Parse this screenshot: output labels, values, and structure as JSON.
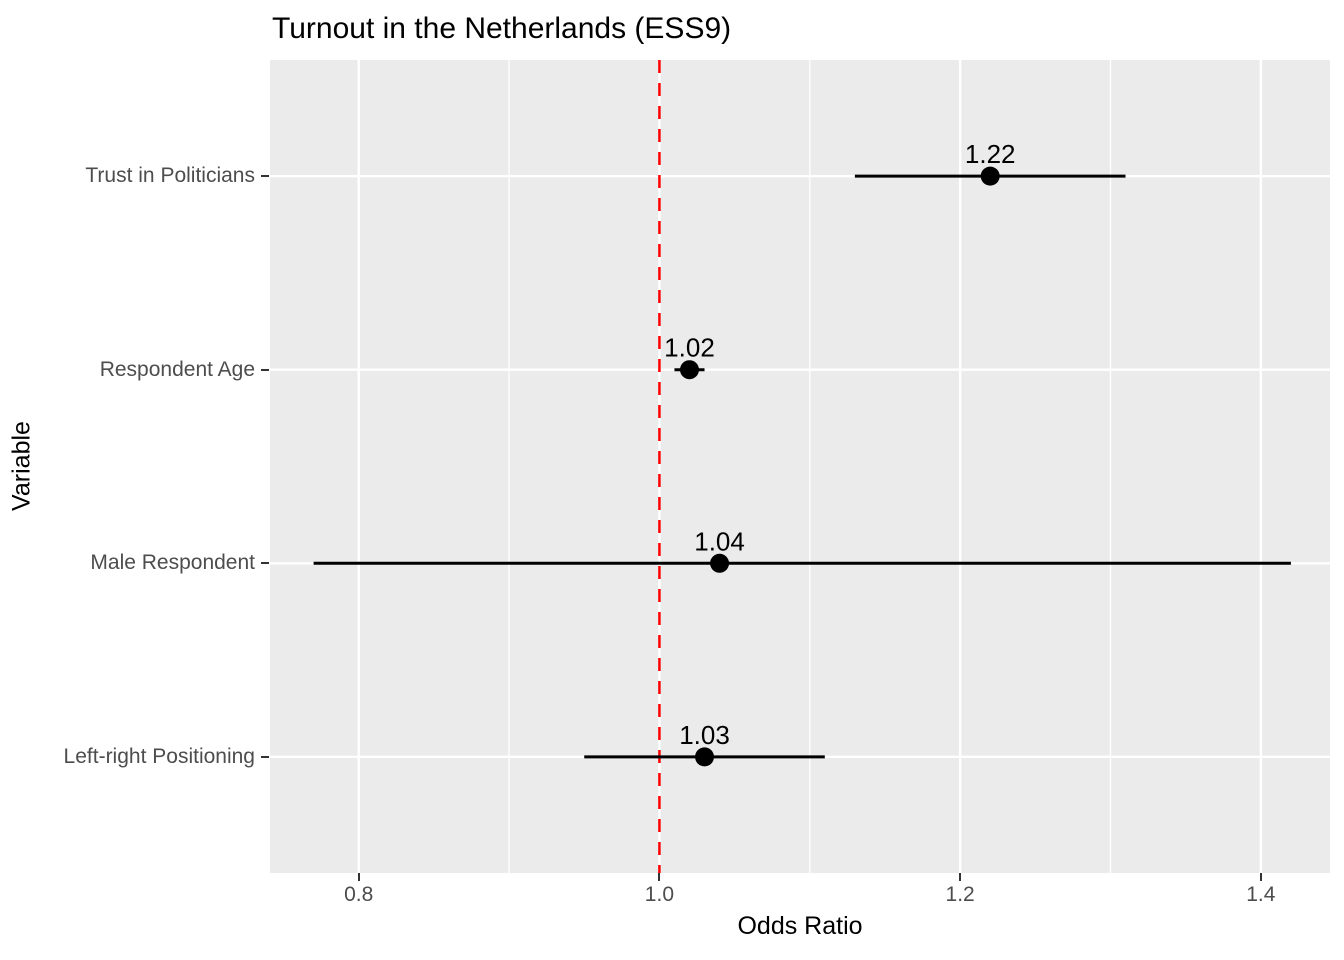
{
  "chart_data": {
    "type": "scatter",
    "subtype": "forest-plot-odds-ratios",
    "title": "Turnout in the Netherlands (ESS9)",
    "xlabel": "Odds Ratio",
    "ylabel": "Variable",
    "xlim": [
      0.741,
      1.446
    ],
    "x_major_ticks": [
      0.8,
      1.0,
      1.2,
      1.4
    ],
    "x_major_tick_labels": [
      "0.8",
      "1.0",
      "1.2",
      "1.4"
    ],
    "x_minor_ticks": [
      0.9,
      1.1,
      1.3
    ],
    "grid": "on",
    "legend_position": "none",
    "reference_line": {
      "x": 1.0,
      "style": "dashed",
      "color": "#ff0000"
    },
    "rows": [
      {
        "label": "Trust in Politicians",
        "odds_ratio": 1.22,
        "ci_low": 1.13,
        "ci_high": 1.31,
        "value_label": "1.22"
      },
      {
        "label": "Respondent Age",
        "odds_ratio": 1.02,
        "ci_low": 1.01,
        "ci_high": 1.03,
        "value_label": "1.02"
      },
      {
        "label": "Male Respondent",
        "odds_ratio": 1.04,
        "ci_low": 0.77,
        "ci_high": 1.42,
        "value_label": "1.04"
      },
      {
        "label": "Left-right Positioning",
        "odds_ratio": 1.03,
        "ci_low": 0.95,
        "ci_high": 1.11,
        "value_label": "1.03"
      }
    ],
    "row_axis_expansion": 0.6
  },
  "theme": {
    "panel_background": "#ebebeb",
    "grid_color": "#ffffff",
    "tick_label_color": "#4d4d4d",
    "tick_mark_color": "#333333",
    "point_color": "#000000",
    "errorbar_color": "#000000",
    "value_label_color": "#000000",
    "title_color": "#000000"
  }
}
